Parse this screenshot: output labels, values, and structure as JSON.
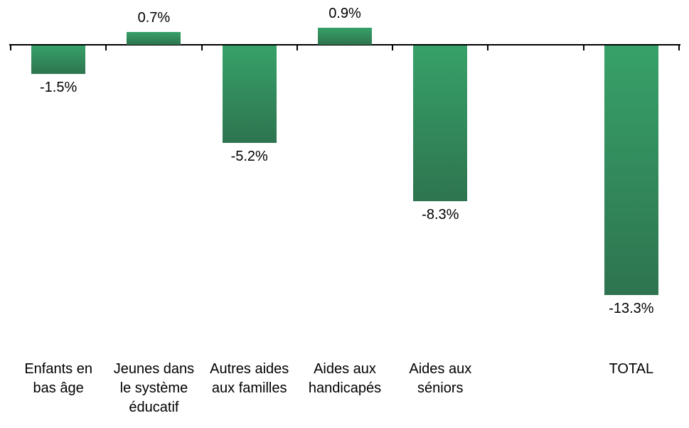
{
  "chart_data": {
    "type": "bar",
    "categories": [
      "Enfants en\nbas âge",
      "Jeunes dans\nle système\néducatif",
      "Autres aides\naux familles",
      "Aides aux\nhandicapés",
      "Aides aux\nséniors",
      "",
      "TOTAL"
    ],
    "values": [
      -1.5,
      0.7,
      -5.2,
      0.9,
      -8.3,
      null,
      -13.3
    ],
    "value_labels": [
      "-1.5%",
      "0.7%",
      "-5.2%",
      "0.9%",
      "-8.3%",
      null,
      "-13.3%"
    ],
    "unit": "%",
    "title": "",
    "xlabel": "",
    "ylabel": "",
    "ylim": [
      -15,
      2.5
    ],
    "grid": false,
    "legend": null,
    "colors": {
      "bar_gradient_top": "#37A169",
      "bar_gradient_bottom": "#2E744F",
      "axis": "#000000",
      "text": "#000000",
      "background": "#FFFFFF"
    }
  }
}
